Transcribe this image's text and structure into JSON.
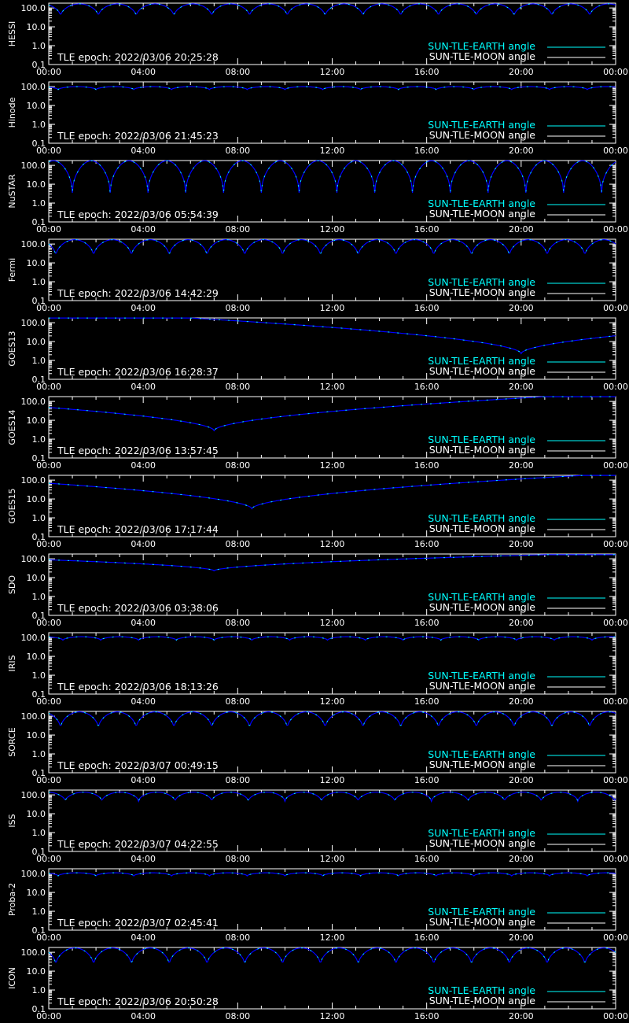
{
  "colors": {
    "background": "#000000",
    "axes": "#ffffff",
    "earth_angle": "#00ffff",
    "moon_angle": "#0000ff",
    "text": "#ffffff"
  },
  "legend": {
    "earth_label": "SUN-TLE-EARTH angle",
    "moon_label": "SUN-TLE-MOON angle"
  },
  "x_ticks": [
    "00:00",
    "04:00",
    "08:00",
    "12:00",
    "16:00",
    "20:00",
    "00:00"
  ],
  "y_ticks": [
    "100.0",
    "10.0",
    "1.0",
    "0.1"
  ],
  "chart_data": [
    {
      "type": "line",
      "ylabel": "HESSI",
      "epoch_text": "TLE epoch: 2022/03/06 20:25:28",
      "xlim": [
        0,
        24
      ],
      "ylim": [
        0.1,
        180
      ],
      "y_scale": "log",
      "legend_placement": "bottom-right",
      "series": [
        {
          "name": "SUN-TLE-EARTH angle",
          "shape": "dips",
          "period_hours": 1.6,
          "phase_hours": 0.5,
          "min": 35,
          "max": 165
        }
      ]
    },
    {
      "type": "line",
      "ylabel": "Hinode",
      "epoch_text": "TLE epoch: 2022/03/06 21:45:23",
      "xlim": [
        0,
        24
      ],
      "ylim": [
        0.1,
        180
      ],
      "y_scale": "log",
      "legend_placement": "bottom-right",
      "series": [
        {
          "name": "SUN-TLE-EARTH angle",
          "shape": "dips",
          "period_hours": 1.6,
          "phase_hours": 0.4,
          "min": 70,
          "max": 100
        }
      ]
    },
    {
      "type": "line",
      "ylabel": "NuSTAR",
      "epoch_text": "TLE epoch: 2022/03/06 05:54:39",
      "xlim": [
        0,
        24
      ],
      "ylim": [
        0.1,
        180
      ],
      "y_scale": "log",
      "legend_placement": "bottom-right",
      "series": [
        {
          "name": "SUN-TLE-EARTH angle",
          "shape": "dips",
          "period_hours": 1.6,
          "phase_hours": 1.0,
          "min": 3.5,
          "max": 175
        }
      ]
    },
    {
      "type": "line",
      "ylabel": "Fermi",
      "epoch_text": "TLE epoch: 2022/03/06 14:42:29",
      "xlim": [
        0,
        24
      ],
      "ylim": [
        0.1,
        180
      ],
      "y_scale": "log",
      "legend_placement": "bottom-right",
      "series": [
        {
          "name": "SUN-TLE-EARTH angle",
          "shape": "dips",
          "period_hours": 1.6,
          "phase_hours": 0.3,
          "min": 22,
          "max": 170
        }
      ]
    },
    {
      "type": "line",
      "ylabel": "GOES13",
      "epoch_text": "TLE epoch: 2022/03/06 16:28:37",
      "xlim": [
        0,
        24
      ],
      "ylim": [
        0.1,
        180
      ],
      "y_scale": "log",
      "legend_placement": "bottom-right",
      "series": [
        {
          "name": "SUN-TLE-EARTH angle",
          "shape": "v",
          "min_time_hours": 20.0,
          "min": 2.3,
          "max": 178
        }
      ]
    },
    {
      "type": "line",
      "ylabel": "GOES14",
      "epoch_text": "TLE epoch: 2022/03/06 13:57:45",
      "xlim": [
        0,
        24
      ],
      "ylim": [
        0.1,
        180
      ],
      "y_scale": "log",
      "legend_placement": "bottom-right",
      "series": [
        {
          "name": "SUN-TLE-EARTH angle",
          "shape": "v",
          "min_time_hours": 7.0,
          "min": 2.8,
          "max": 178
        }
      ]
    },
    {
      "type": "line",
      "ylabel": "GOES15",
      "epoch_text": "TLE epoch: 2022/03/06 17:17:44",
      "xlim": [
        0,
        24
      ],
      "ylim": [
        0.1,
        180
      ],
      "y_scale": "log",
      "legend_placement": "bottom-right",
      "series": [
        {
          "name": "SUN-TLE-EARTH angle",
          "shape": "v",
          "min_time_hours": 8.6,
          "min": 3.0,
          "max": 178
        }
      ]
    },
    {
      "type": "line",
      "ylabel": "SDO",
      "epoch_text": "TLE epoch: 2022/03/06 03:38:06",
      "xlim": [
        0,
        24
      ],
      "ylim": [
        0.1,
        180
      ],
      "y_scale": "log",
      "legend_placement": "bottom-right",
      "series": [
        {
          "name": "SUN-TLE-EARTH angle",
          "shape": "v",
          "min_time_hours": 7.0,
          "min": 23,
          "max": 165
        }
      ]
    },
    {
      "type": "line",
      "ylabel": "IRIS",
      "epoch_text": "TLE epoch: 2022/03/06 18:13:26",
      "xlim": [
        0,
        24
      ],
      "ylim": [
        0.1,
        180
      ],
      "y_scale": "log",
      "legend_placement": "bottom-right",
      "series": [
        {
          "name": "SUN-TLE-EARTH angle",
          "shape": "dips",
          "period_hours": 1.6,
          "phase_hours": 0.6,
          "min": 72,
          "max": 110
        }
      ]
    },
    {
      "type": "line",
      "ylabel": "SORCE",
      "epoch_text": "TLE epoch: 2022/03/07 00:49:15",
      "xlim": [
        0,
        24
      ],
      "ylim": [
        0.1,
        180
      ],
      "y_scale": "log",
      "legend_placement": "bottom-right",
      "series": [
        {
          "name": "SUN-TLE-EARTH angle",
          "shape": "dips",
          "period_hours": 1.6,
          "phase_hours": 0.5,
          "min": 22,
          "max": 170
        }
      ]
    },
    {
      "type": "line",
      "ylabel": "ISS",
      "epoch_text": "TLE epoch: 2022/03/07 04:22:55",
      "xlim": [
        0,
        24
      ],
      "ylim": [
        0.1,
        180
      ],
      "y_scale": "log",
      "legend_placement": "bottom-right",
      "series": [
        {
          "name": "SUN-TLE-EARTH angle",
          "shape": "dips",
          "period_hours": 1.55,
          "phase_hours": 0.7,
          "min": 45,
          "max": 140
        }
      ]
    },
    {
      "type": "line",
      "ylabel": "Proba-2",
      "epoch_text": "TLE epoch: 2022/03/07 02:45:41",
      "xlim": [
        0,
        24
      ],
      "ylim": [
        0.1,
        180
      ],
      "y_scale": "log",
      "legend_placement": "bottom-right",
      "series": [
        {
          "name": "SUN-TLE-EARTH angle",
          "shape": "dips",
          "period_hours": 1.6,
          "phase_hours": 0.4,
          "min": 75,
          "max": 110
        }
      ]
    },
    {
      "type": "line",
      "ylabel": "ICON",
      "epoch_text": "TLE epoch: 2022/03/06 20:50:28",
      "xlim": [
        0,
        24
      ],
      "ylim": [
        0.1,
        180
      ],
      "y_scale": "log",
      "legend_placement": "bottom-right",
      "series": [
        {
          "name": "SUN-TLE-EARTH angle",
          "shape": "dips",
          "period_hours": 1.6,
          "phase_hours": 0.3,
          "min": 20,
          "max": 170
        }
      ]
    }
  ]
}
